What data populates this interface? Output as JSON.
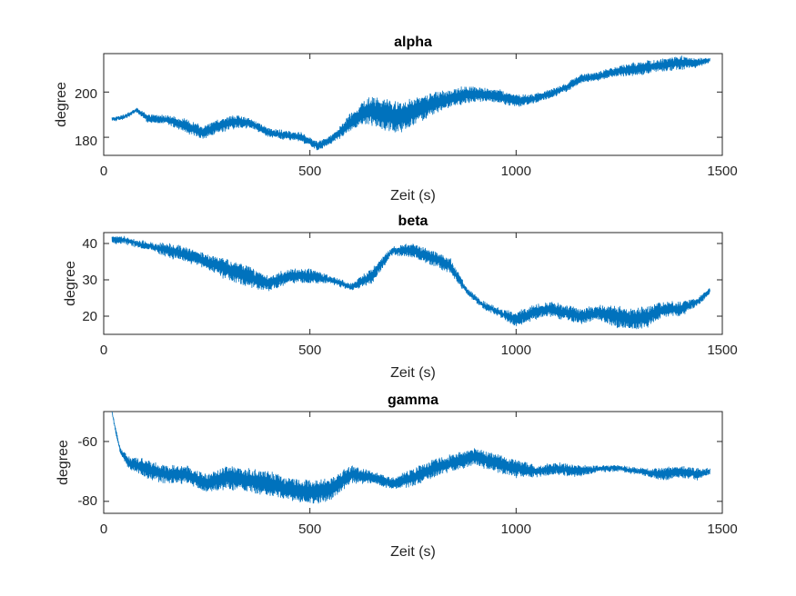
{
  "chart_data": [
    {
      "type": "line",
      "title": "alpha",
      "xlabel": "Zeit (s)",
      "ylabel": "degree",
      "xlim": [
        0,
        1500
      ],
      "ylim": [
        172,
        217
      ],
      "xticks": [
        "0",
        "500",
        "1000",
        "1500"
      ],
      "yticks": [
        "180",
        "200"
      ],
      "color": "#0072BD",
      "series": [
        {
          "x": [
            20,
            50,
            80,
            110,
            150,
            200,
            240,
            280,
            320,
            360,
            400,
            440,
            480,
            520,
            560,
            600,
            640,
            680,
            720,
            760,
            800,
            840,
            880,
            920,
            960,
            1000,
            1040,
            1080,
            1120,
            1160,
            1200,
            1240,
            1280,
            1320,
            1360,
            1400,
            1440,
            1470
          ],
          "y": [
            188,
            189,
            192,
            188,
            188,
            185,
            182,
            185,
            187,
            186,
            182,
            181,
            180,
            176,
            180,
            187,
            192,
            190,
            189,
            192,
            195,
            197,
            199,
            199,
            198,
            196,
            197,
            199,
            202,
            206,
            207,
            209,
            210,
            211,
            212,
            213,
            213,
            214
          ],
          "band": [
            1,
            1,
            1,
            2,
            2,
            3,
            3,
            3,
            3,
            2,
            2,
            2,
            2,
            2,
            2,
            4,
            6,
            7,
            7,
            6,
            5,
            4,
            4,
            3,
            3,
            3,
            2,
            2,
            2,
            2,
            2,
            2,
            3,
            3,
            3,
            3,
            2,
            1
          ]
        }
      ]
    },
    {
      "type": "line",
      "title": "beta",
      "xlabel": "Zeit (s)",
      "ylabel": "degree",
      "xlim": [
        0,
        1500
      ],
      "ylim": [
        15,
        43
      ],
      "xticks": [
        "0",
        "500",
        "1000",
        "1500"
      ],
      "yticks": [
        "20",
        "30",
        "40"
      ],
      "color": "#0072BD",
      "series": [
        {
          "x": [
            20,
            50,
            80,
            120,
            160,
            200,
            250,
            300,
            350,
            400,
            450,
            500,
            550,
            600,
            650,
            700,
            750,
            800,
            840,
            880,
            920,
            960,
            1000,
            1040,
            1080,
            1120,
            1160,
            1200,
            1240,
            1280,
            1320,
            1360,
            1400,
            1440,
            1470
          ],
          "y": [
            41,
            41,
            40,
            39,
            38,
            37,
            35,
            33,
            31,
            29,
            31,
            31,
            30,
            28,
            31,
            38,
            38,
            36,
            34,
            27,
            23,
            21,
            19,
            21,
            22,
            21,
            20,
            21,
            20,
            19,
            20,
            22,
            22,
            24,
            27
          ],
          "band": [
            1,
            1,
            1,
            1,
            2,
            2,
            2,
            3,
            3,
            2,
            2,
            2,
            1,
            1,
            2,
            1,
            2,
            2,
            2,
            1,
            1,
            1,
            2,
            2,
            2,
            2,
            2,
            2,
            3,
            3,
            3,
            2,
            2,
            1,
            1
          ]
        }
      ]
    },
    {
      "type": "line",
      "title": "gamma",
      "xlabel": "Zeit (s)",
      "ylabel": "degree",
      "xlim": [
        0,
        1500
      ],
      "ylim": [
        -84,
        -50
      ],
      "xticks": [
        "0",
        "500",
        "1000",
        "1500"
      ],
      "yticks": [
        "-60",
        "-80"
      ],
      "color": "#0072BD",
      "series": [
        {
          "x": [
            20,
            30,
            40,
            60,
            100,
            150,
            200,
            250,
            300,
            350,
            400,
            450,
            500,
            550,
            600,
            650,
            700,
            750,
            800,
            850,
            900,
            950,
            1000,
            1050,
            1100,
            1150,
            1200,
            1250,
            1300,
            1350,
            1400,
            1440,
            1470
          ],
          "y": [
            -50,
            -57,
            -63,
            -67,
            -69,
            -71,
            -71,
            -74,
            -72,
            -73,
            -74,
            -76,
            -77,
            -76,
            -71,
            -72,
            -74,
            -72,
            -69,
            -67,
            -65,
            -67,
            -69,
            -70,
            -69,
            -70,
            -69,
            -69,
            -70,
            -71,
            -70,
            -71,
            -70
          ],
          "band": [
            0,
            1,
            1,
            2,
            3,
            3,
            3,
            3,
            4,
            4,
            4,
            4,
            4,
            4,
            3,
            2,
            2,
            3,
            3,
            3,
            3,
            3,
            3,
            2,
            2,
            2,
            1,
            1,
            1,
            2,
            2,
            2,
            1
          ]
        }
      ]
    }
  ]
}
